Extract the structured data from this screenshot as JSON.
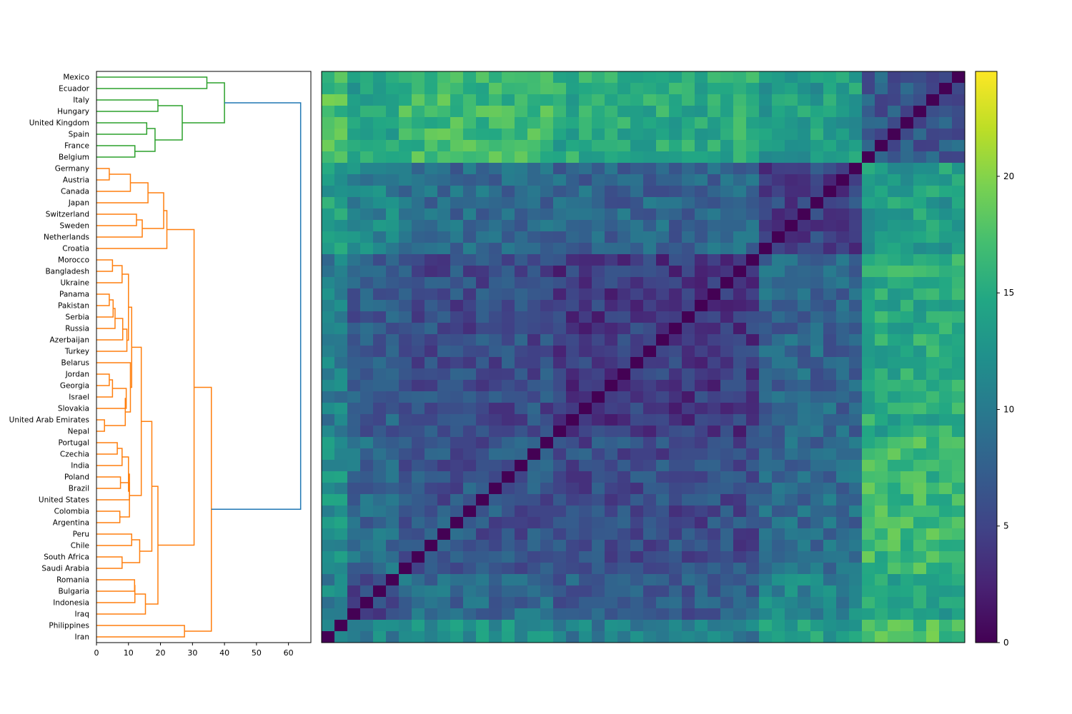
{
  "chart_data": [
    {
      "type": "dendrogram",
      "orientation": "left",
      "xlim": [
        0,
        67
      ],
      "xticks": [
        0,
        10,
        20,
        30,
        40,
        50,
        60
      ],
      "leaves": [
        "Mexico",
        "Ecuador",
        "Italy",
        "Hungary",
        "United Kingdom",
        "Spain",
        "France",
        "Belgium",
        "Germany",
        "Austria",
        "Canada",
        "Japan",
        "Switzerland",
        "Sweden",
        "Netherlands",
        "Croatia",
        "Morocco",
        "Bangladesh",
        "Ukraine",
        "Panama",
        "Pakistan",
        "Serbia",
        "Russia",
        "Azerbaijan",
        "Turkey",
        "Belarus",
        "Jordan",
        "Georgia",
        "Israel",
        "Slovakia",
        "United Arab Emirates",
        "Nepal",
        "Portugal",
        "Czechia",
        "India",
        "Poland",
        "Brazil",
        "United States",
        "Colombia",
        "Argentina",
        "Peru",
        "Chile",
        "South Africa",
        "Saudi Arabia",
        "Romania",
        "Bulgaria",
        "Indonesia",
        "Iraq",
        "Philippines",
        "Iran"
      ],
      "merges": [
        {
          "id": "M1",
          "children": [
            "L0",
            "L1"
          ],
          "height": 34.5,
          "cluster": "green"
        },
        {
          "id": "M2",
          "children": [
            "L2",
            "L3"
          ],
          "height": 19.2,
          "cluster": "green"
        },
        {
          "id": "M3",
          "children": [
            "L4",
            "L5"
          ],
          "height": 15.7,
          "cluster": "green"
        },
        {
          "id": "M4",
          "children": [
            "L6",
            "L7"
          ],
          "height": 12.0,
          "cluster": "green"
        },
        {
          "id": "M5",
          "children": [
            "M3",
            "M4"
          ],
          "height": 18.3,
          "cluster": "green"
        },
        {
          "id": "M6",
          "children": [
            "M2",
            "M5"
          ],
          "height": 26.8,
          "cluster": "green"
        },
        {
          "id": "M7",
          "children": [
            "M1",
            "M6"
          ],
          "height": 40.0,
          "cluster": "green"
        },
        {
          "id": "M8",
          "children": [
            "L8",
            "L9"
          ],
          "height": 4.0,
          "cluster": "orange"
        },
        {
          "id": "M9",
          "children": [
            "M8",
            "L10"
          ],
          "height": 10.6,
          "cluster": "orange"
        },
        {
          "id": "M10",
          "children": [
            "M9",
            "L11"
          ],
          "height": 16.1,
          "cluster": "orange"
        },
        {
          "id": "M11",
          "children": [
            "L12",
            "L13"
          ],
          "height": 12.5,
          "cluster": "orange"
        },
        {
          "id": "M12",
          "children": [
            "M11",
            "L14"
          ],
          "height": 14.3,
          "cluster": "orange"
        },
        {
          "id": "M13",
          "children": [
            "M10",
            "M12"
          ],
          "height": 21.0,
          "cluster": "orange"
        },
        {
          "id": "M14",
          "children": [
            "M13",
            "L15"
          ],
          "height": 22.0,
          "cluster": "orange"
        },
        {
          "id": "M15",
          "children": [
            "L16",
            "L17"
          ],
          "height": 5.0,
          "cluster": "orange"
        },
        {
          "id": "M16",
          "children": [
            "M15",
            "L18"
          ],
          "height": 8.0,
          "cluster": "orange"
        },
        {
          "id": "M17",
          "children": [
            "L19",
            "L20"
          ],
          "height": 4.0,
          "cluster": "orange"
        },
        {
          "id": "M18",
          "children": [
            "M17",
            "L21"
          ],
          "height": 5.2,
          "cluster": "orange"
        },
        {
          "id": "M19",
          "children": [
            "M18",
            "L22"
          ],
          "height": 5.8,
          "cluster": "orange"
        },
        {
          "id": "M20",
          "children": [
            "M19",
            "L23"
          ],
          "height": 8.2,
          "cluster": "orange"
        },
        {
          "id": "M21",
          "children": [
            "M20",
            "L24"
          ],
          "height": 9.5,
          "cluster": "orange"
        },
        {
          "id": "M22",
          "children": [
            "M16",
            "M21"
          ],
          "height": 10.0,
          "cluster": "orange"
        },
        {
          "id": "M23",
          "children": [
            "L26",
            "L27"
          ],
          "height": 4.0,
          "cluster": "orange"
        },
        {
          "id": "M24",
          "children": [
            "M23",
            "L28"
          ],
          "height": 5.0,
          "cluster": "orange"
        },
        {
          "id": "M25",
          "children": [
            "M24",
            "L29"
          ],
          "height": 9.3,
          "cluster": "orange"
        },
        {
          "id": "M26",
          "children": [
            "L30",
            "L31"
          ],
          "height": 2.5,
          "cluster": "orange"
        },
        {
          "id": "M27",
          "children": [
            "M25",
            "M26"
          ],
          "height": 9.0,
          "cluster": "orange"
        },
        {
          "id": "M28",
          "children": [
            "L25",
            "M27"
          ],
          "height": 10.6,
          "cluster": "orange"
        },
        {
          "id": "M29",
          "children": [
            "M22",
            "M28"
          ],
          "height": 11.0,
          "cluster": "orange"
        },
        {
          "id": "M30",
          "children": [
            "L32",
            "L33"
          ],
          "height": 6.5,
          "cluster": "orange"
        },
        {
          "id": "M31",
          "children": [
            "M30",
            "L34"
          ],
          "height": 8.0,
          "cluster": "orange"
        },
        {
          "id": "M32",
          "children": [
            "L35",
            "L36"
          ],
          "height": 7.5,
          "cluster": "orange"
        },
        {
          "id": "M33",
          "children": [
            "M32",
            "L37"
          ],
          "height": 10.3,
          "cluster": "orange"
        },
        {
          "id": "M34",
          "children": [
            "M31",
            "M33"
          ],
          "height": 10.0,
          "cluster": "orange"
        },
        {
          "id": "M35",
          "children": [
            "L38",
            "L39"
          ],
          "height": 7.3,
          "cluster": "orange"
        },
        {
          "id": "M36",
          "children": [
            "M34",
            "M35"
          ],
          "height": 10.3,
          "cluster": "orange"
        },
        {
          "id": "M37",
          "children": [
            "M29",
            "M36"
          ],
          "height": 14.0,
          "cluster": "orange"
        },
        {
          "id": "M38",
          "children": [
            "L40",
            "L41"
          ],
          "height": 11.0,
          "cluster": "orange"
        },
        {
          "id": "M39",
          "children": [
            "L42",
            "L43"
          ],
          "height": 8.0,
          "cluster": "orange"
        },
        {
          "id": "M40",
          "children": [
            "M38",
            "M39"
          ],
          "height": 13.5,
          "cluster": "orange"
        },
        {
          "id": "M41",
          "children": [
            "M37",
            "M40"
          ],
          "height": 17.3,
          "cluster": "orange"
        },
        {
          "id": "M42",
          "children": [
            "L44",
            "L45"
          ],
          "height": 11.9,
          "cluster": "orange"
        },
        {
          "id": "M43",
          "children": [
            "M42",
            "L46"
          ],
          "height": 12.0,
          "cluster": "orange"
        },
        {
          "id": "M44",
          "children": [
            "M43",
            "L47"
          ],
          "height": 15.3,
          "cluster": "orange"
        },
        {
          "id": "M45",
          "children": [
            "M41",
            "M44"
          ],
          "height": 19.2,
          "cluster": "orange"
        },
        {
          "id": "M46",
          "children": [
            "M14",
            "M45"
          ],
          "height": 30.5,
          "cluster": "orange"
        },
        {
          "id": "M47",
          "children": [
            "L48",
            "L49"
          ],
          "height": 27.5,
          "cluster": "orange"
        },
        {
          "id": "M48",
          "children": [
            "M46",
            "M47"
          ],
          "height": 35.9,
          "cluster": "orange"
        },
        {
          "id": "M49",
          "children": [
            "M7",
            "M48"
          ],
          "height": 63.8,
          "cluster": "blue"
        }
      ],
      "colors": {
        "green": "#2ca02c",
        "orange": "#ff7f0e",
        "blue": "#1f77b4"
      }
    },
    {
      "type": "heatmap",
      "colormap": "viridis",
      "rows": 50,
      "cols": 50,
      "vmin": 0,
      "vmax": 24.5,
      "colorbar_ticks": [
        0,
        5,
        10,
        15,
        20
      ],
      "axis_ticks_visible": false,
      "note_cells": "symmetric distance matrix (rows top=Mexico … bottom=Iran; columns left=Iran … right=Mexico), zero diagonal running bottom-left to top-right, estimated values",
      "block_levels": {
        "groups": [
          {
            "name": "G1",
            "rows_from_top": [
              0,
              7
            ]
          },
          {
            "name": "G2",
            "rows_from_top": [
              8,
              15
            ]
          },
          {
            "name": "G3",
            "rows_from_top": [
              16,
              31
            ]
          },
          {
            "name": "G4",
            "rows_from_top": [
              32,
              43
            ]
          },
          {
            "name": "G5",
            "rows_from_top": [
              44,
              47
            ]
          },
          {
            "name": "G6",
            "rows_from_top": [
              48,
              49
            ]
          }
        ],
        "mean_distance": [
          [
            7.0,
            13.5,
            15.0,
            16.5,
            14.5,
            17.5
          ],
          [
            13.5,
            5.0,
            8.0,
            8.5,
            11.0,
            13.5
          ],
          [
            15.0,
            8.0,
            4.2,
            5.8,
            7.0,
            10.5
          ],
          [
            16.5,
            8.5,
            5.8,
            6.5,
            8.5,
            12.5
          ],
          [
            14.5,
            11.0,
            7.0,
            8.5,
            6.0,
            11.0
          ],
          [
            17.5,
            13.5,
            10.5,
            12.5,
            11.0,
            9.0
          ]
        ]
      }
    }
  ]
}
